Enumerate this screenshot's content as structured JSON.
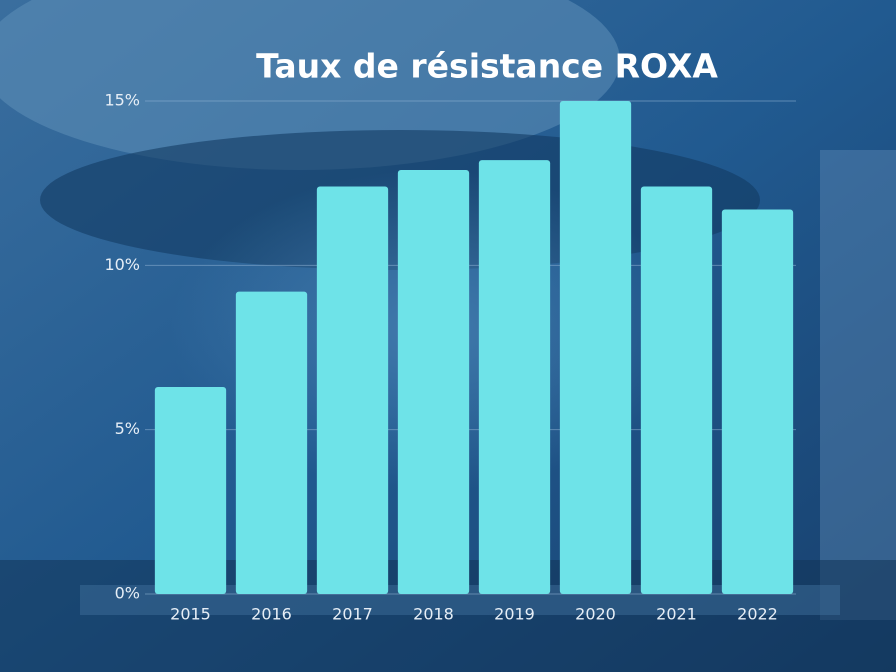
{
  "chart_data": {
    "type": "bar",
    "title": "Taux de résistance ROXA",
    "categories": [
      "2015",
      "2016",
      "2017",
      "2018",
      "2019",
      "2020",
      "2021",
      "2022"
    ],
    "values": [
      6.3,
      9.2,
      12.4,
      12.9,
      13.2,
      15.0,
      12.4,
      11.7
    ],
    "color": "#6ee3e8",
    "ylim": [
      0,
      15
    ],
    "yticks": [
      {
        "value": 0,
        "label": "0%"
      },
      {
        "value": 5,
        "label": "5%"
      },
      {
        "value": 10,
        "label": "10%"
      },
      {
        "value": 15,
        "label": "15%"
      }
    ],
    "grid": true
  }
}
